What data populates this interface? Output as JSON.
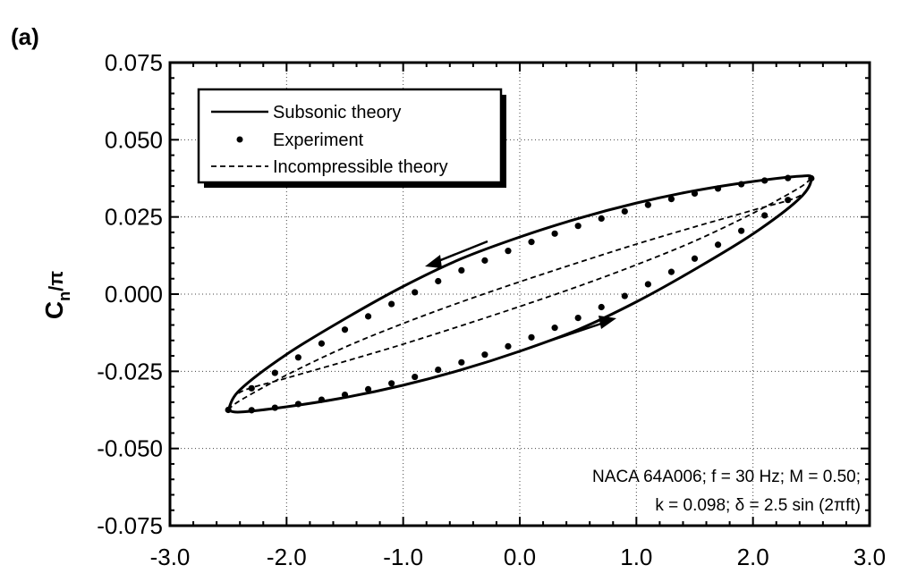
{
  "chart_data": {
    "type": "line",
    "panel_label": "(a)",
    "ylabel": {
      "main": "C",
      "sub": "n",
      "suffix": "/π"
    },
    "xlabel": "",
    "xlim": [
      -3.0,
      3.0
    ],
    "ylim": [
      -0.075,
      0.075
    ],
    "x_ticks": [
      "-3.0",
      "-2.0",
      "-1.0",
      "0.0",
      "1.0",
      "2.0",
      "3.0"
    ],
    "y_ticks": [
      "-0.075",
      "-0.050",
      "-0.025",
      "0.000",
      "0.025",
      "0.050",
      "0.075"
    ],
    "grid": true,
    "legend_position": "top-left",
    "legend": [
      "Subsonic theory",
      "Experiment",
      "Incompressible theory"
    ],
    "annotation_lines": [
      "NACA 64A006;  f = 30 Hz;  M = 0.50;",
      "k = 0.098;  δ = 2.5 sin (2πft)"
    ],
    "arrows": [
      "upper branch: decreasing x",
      "lower branch: increasing x"
    ],
    "series": [
      {
        "name": "Subsonic theory",
        "style": "solid",
        "x": [
          -2.5,
          -2.4,
          -2.0,
          -1.5,
          -1.0,
          -0.5,
          0.0,
          0.5,
          1.0,
          1.5,
          2.0,
          2.4,
          2.5,
          2.4,
          2.0,
          1.5,
          1.0,
          0.5,
          0.0,
          -0.5,
          -1.0,
          -1.5,
          -2.0,
          -2.4,
          -2.5
        ],
        "y": [
          -0.0375,
          -0.031,
          -0.0195,
          -0.008,
          0.0025,
          0.0115,
          0.0185,
          0.0245,
          0.0295,
          0.0335,
          0.0365,
          0.0382,
          0.0375,
          0.031,
          0.0195,
          0.008,
          -0.0025,
          -0.0115,
          -0.0185,
          -0.0245,
          -0.0295,
          -0.0335,
          -0.0365,
          -0.0382,
          -0.0375
        ]
      },
      {
        "name": "Experiment",
        "style": "dots",
        "x": [
          -2.5,
          -2.3,
          -2.1,
          -1.9,
          -1.7,
          -1.5,
          -1.3,
          -1.1,
          -0.9,
          -0.7,
          -0.5,
          -0.3,
          -0.1,
          0.1,
          0.3,
          0.5,
          0.7,
          0.9,
          1.1,
          1.3,
          1.5,
          1.7,
          1.9,
          2.1,
          2.3,
          2.5,
          2.3,
          2.1,
          1.9,
          1.7,
          1.5,
          1.3,
          1.1,
          0.9,
          0.7,
          0.5,
          0.3,
          0.1,
          -0.1,
          -0.3,
          -0.5,
          -0.7,
          -0.9,
          -1.1,
          -1.3,
          -1.5,
          -1.7,
          -1.9,
          -2.1,
          -2.3
        ],
        "y": [
          -0.0375,
          -0.0305,
          -0.0255,
          -0.0205,
          -0.016,
          -0.0115,
          -0.0072,
          -0.0032,
          0.0006,
          0.0042,
          0.0077,
          0.0109,
          0.014,
          0.0169,
          0.0196,
          0.0221,
          0.0245,
          0.0268,
          0.0289,
          0.0308,
          0.0326,
          0.0342,
          0.0356,
          0.0368,
          0.0376,
          0.0375,
          0.0305,
          0.0255,
          0.0205,
          0.016,
          0.0115,
          0.0072,
          0.0032,
          -0.0006,
          -0.0042,
          -0.0077,
          -0.0109,
          -0.014,
          -0.0169,
          -0.0196,
          -0.0221,
          -0.0245,
          -0.0268,
          -0.0289,
          -0.0308,
          -0.0326,
          -0.0342,
          -0.0356,
          -0.0368,
          -0.0376
        ]
      },
      {
        "name": "Incompressible theory",
        "style": "dashed",
        "x": [
          -2.5,
          -2.4,
          -2.0,
          -1.5,
          -1.0,
          -0.5,
          0.0,
          0.5,
          1.0,
          1.5,
          2.0,
          2.4,
          2.5,
          2.4,
          2.0,
          1.5,
          1.0,
          0.5,
          0.0,
          -0.5,
          -1.0,
          -1.5,
          -2.0,
          -2.4,
          -2.5
        ],
        "y": [
          -0.0375,
          -0.0345,
          -0.0262,
          -0.0172,
          -0.0095,
          -0.0025,
          0.004,
          0.0102,
          0.0162,
          0.0218,
          0.0272,
          0.0318,
          0.0375,
          0.0345,
          0.0262,
          0.0172,
          0.0095,
          0.0025,
          -0.004,
          -0.0102,
          -0.0162,
          -0.0218,
          -0.0272,
          -0.0318,
          -0.0375
        ]
      }
    ]
  }
}
